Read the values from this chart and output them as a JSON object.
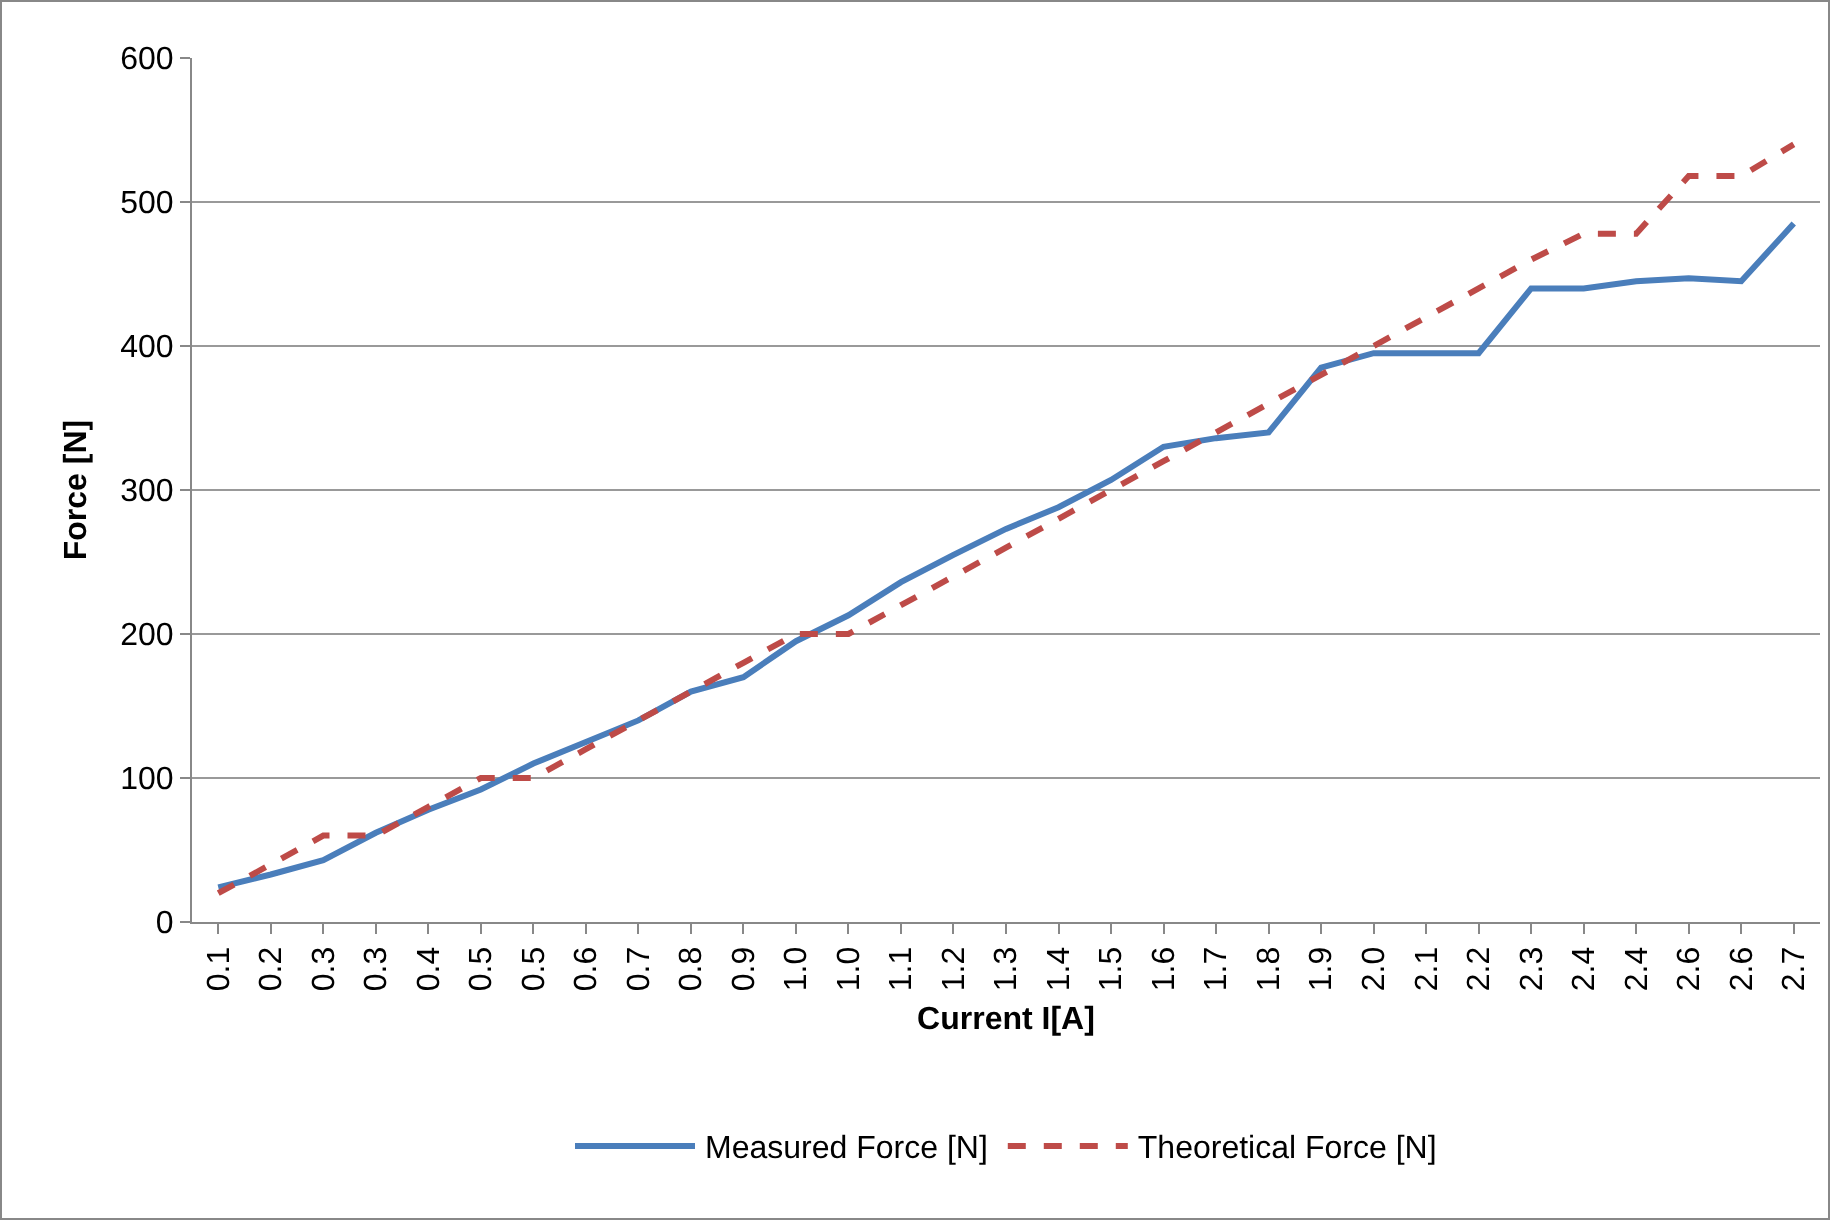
{
  "chart_data": {
    "type": "line",
    "xlabel": "Current I[A]",
    "ylabel": "Force [N]",
    "categories": [
      "0.1",
      "0.2",
      "0.3",
      "0.3",
      "0.4",
      "0.5",
      "0.5",
      "0.6",
      "0.7",
      "0.8",
      "0.9",
      "1.0",
      "1.0",
      "1.1",
      "1.2",
      "1.3",
      "1.4",
      "1.5",
      "1.6",
      "1.7",
      "1.8",
      "1.9",
      "2.0",
      "2.1",
      "2.2",
      "2.3",
      "2.4",
      "2.4",
      "2.6",
      "2.6",
      "2.7"
    ],
    "series": [
      {
        "name": "Measured Force [N]",
        "color": "#4a7ebb",
        "line_style": "solid",
        "values": [
          24,
          33,
          43,
          62,
          78,
          92,
          110,
          125,
          140,
          160,
          170,
          195,
          213,
          236,
          255,
          273,
          288,
          307,
          330,
          336,
          340,
          385,
          395,
          395,
          395,
          440,
          440,
          445,
          447,
          445,
          485
        ]
      },
      {
        "name": "Theoretical Force [N]",
        "color": "#be4b48",
        "line_style": "dashed",
        "values": [
          20,
          40,
          60,
          60,
          80,
          100,
          100,
          120,
          140,
          160,
          180,
          200,
          200,
          220,
          240,
          260,
          280,
          300,
          320,
          340,
          360,
          380,
          400,
          420,
          440,
          460,
          478,
          478,
          518,
          518,
          540
        ]
      }
    ],
    "ylim": [
      0,
      600
    ],
    "yticks": [
      0,
      100,
      200,
      300,
      400,
      500,
      600
    ],
    "grid": "y",
    "legend": "bottom",
    "marker": "none"
  }
}
